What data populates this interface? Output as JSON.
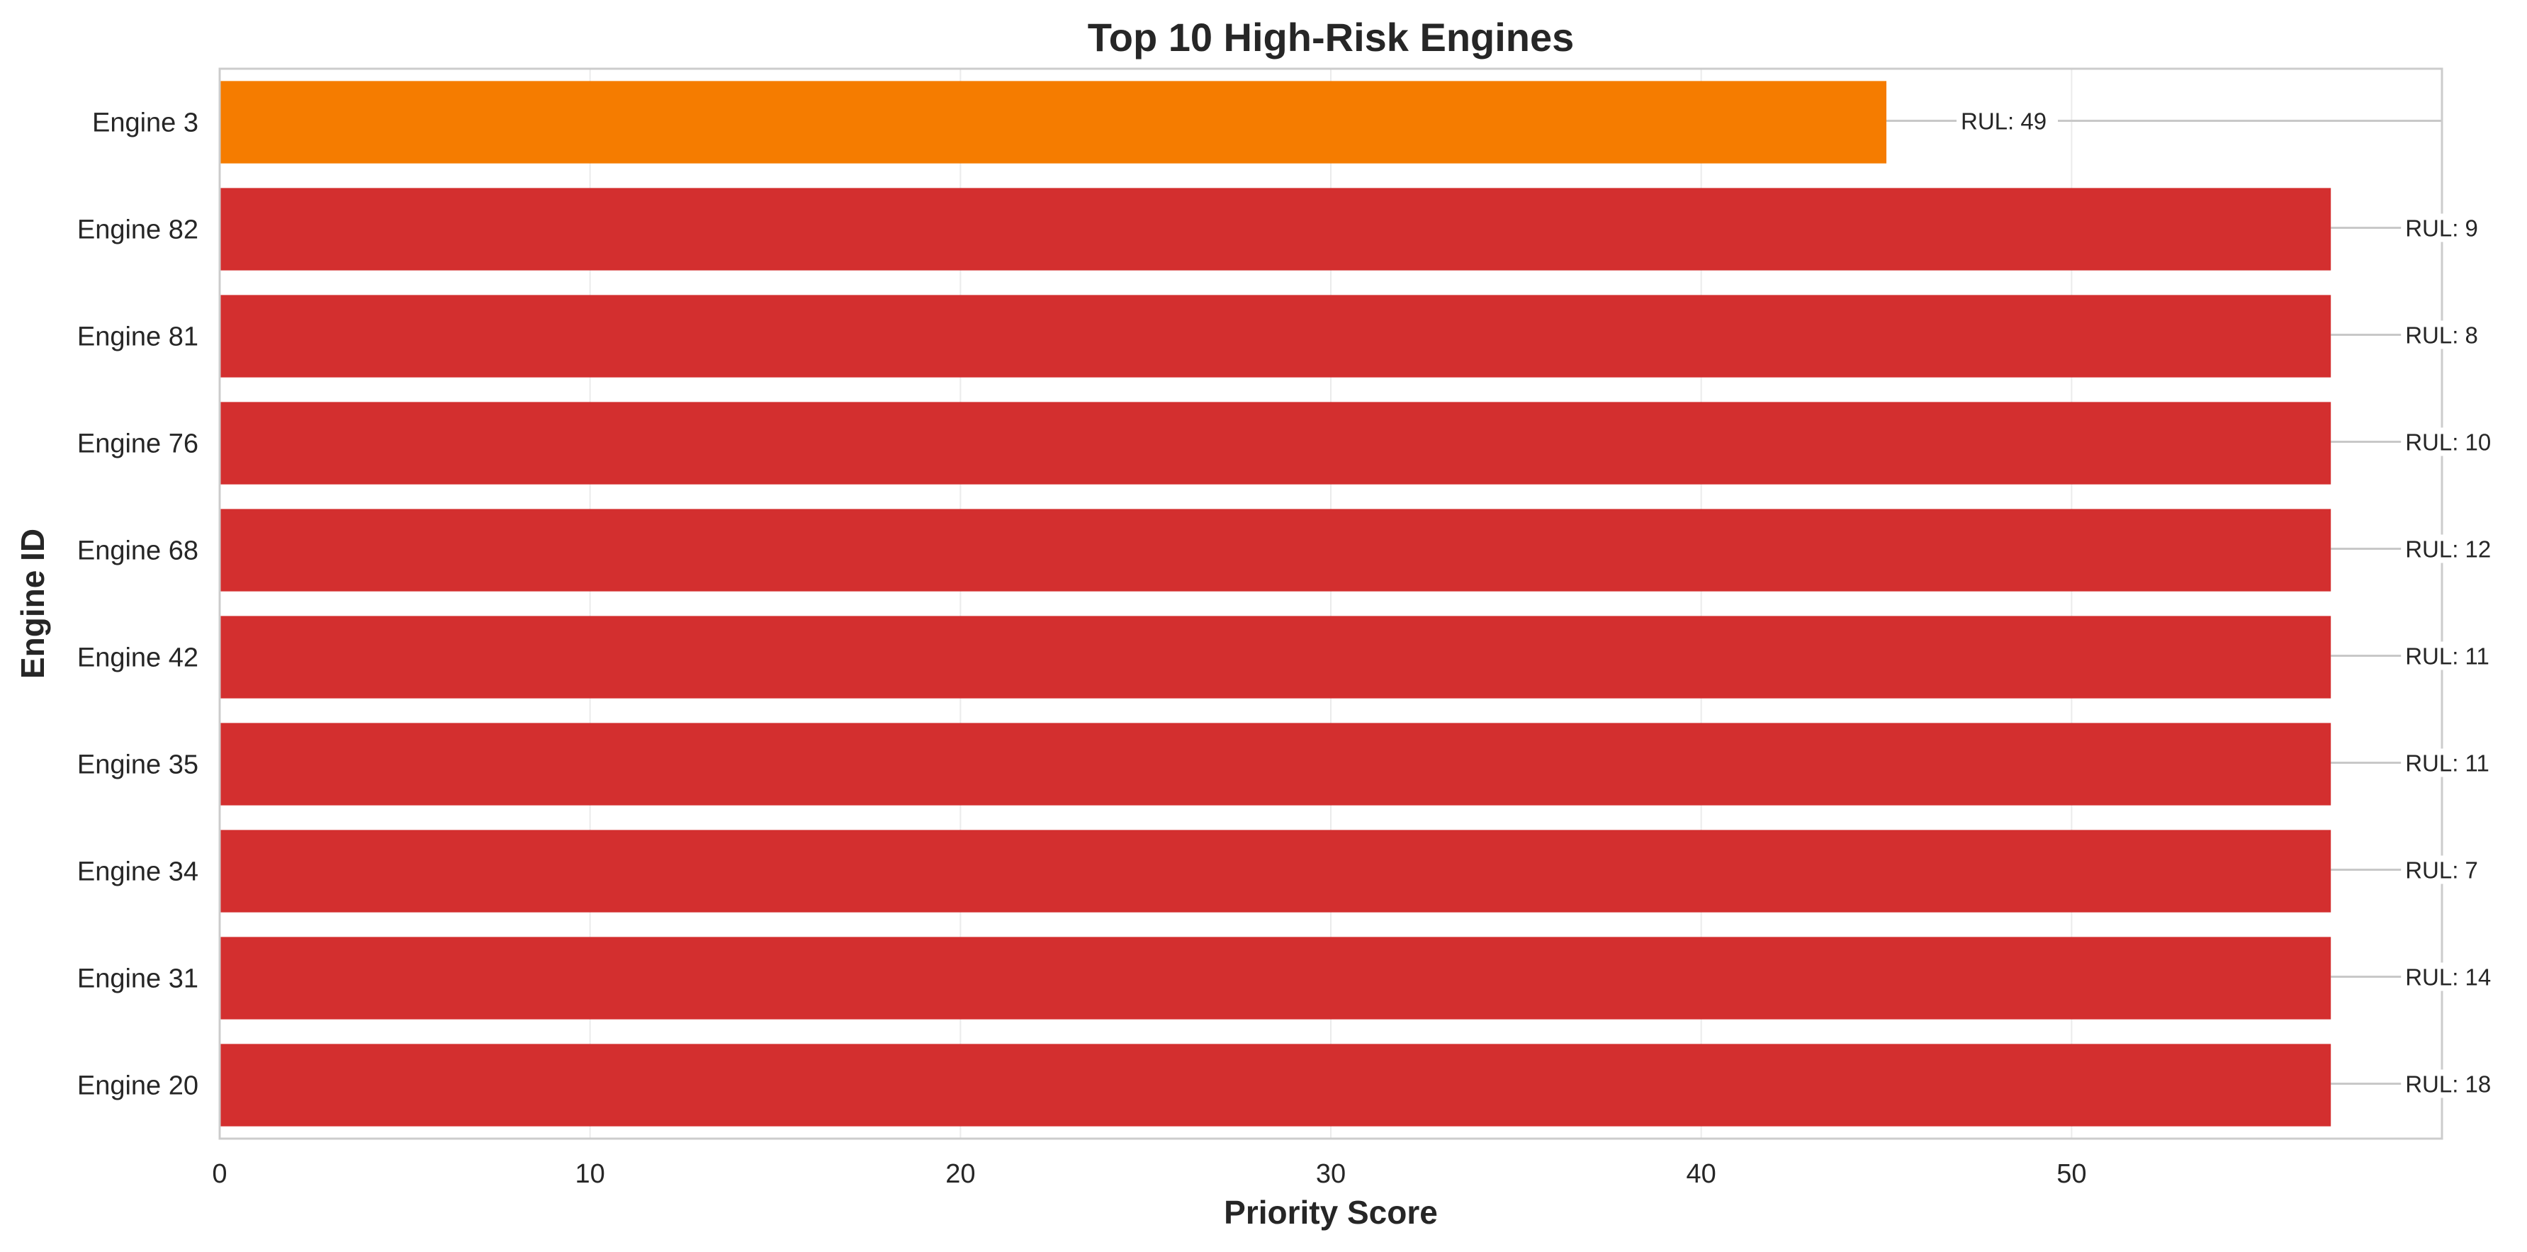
{
  "chart_data": {
    "type": "bar",
    "orientation": "horizontal",
    "title": "Top 10 High-Risk Engines",
    "xlabel": "Priority Score",
    "ylabel": "Engine ID",
    "xlim": [
      0,
      60
    ],
    "xticks": [
      0,
      10,
      20,
      30,
      40,
      50
    ],
    "grid": true,
    "categories": [
      "Engine 3",
      "Engine 82",
      "Engine 81",
      "Engine 76",
      "Engine 68",
      "Engine 42",
      "Engine 35",
      "Engine 34",
      "Engine 31",
      "Engine 20"
    ],
    "values": [
      45,
      57,
      57,
      57,
      57,
      57,
      57,
      57,
      57,
      57
    ],
    "annotations": [
      "RUL: 49",
      "RUL: 9",
      "RUL: 8",
      "RUL: 10",
      "RUL: 12",
      "RUL: 11",
      "RUL: 11",
      "RUL: 7",
      "RUL: 14",
      "RUL: 18"
    ],
    "bar_colors": [
      "#f57c00",
      "#d32f2f",
      "#d32f2f",
      "#d32f2f",
      "#d32f2f",
      "#d32f2f",
      "#d32f2f",
      "#d32f2f",
      "#d32f2f",
      "#d32f2f"
    ],
    "colors": {
      "grid": "#ebebeb",
      "frame": "#cccccc",
      "leader": "#c8c8c8"
    }
  }
}
